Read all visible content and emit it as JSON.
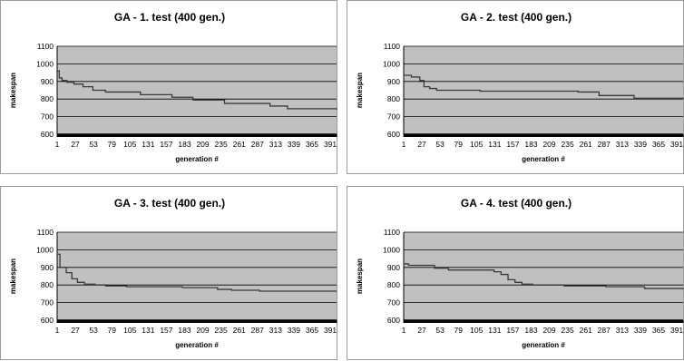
{
  "chart_data": [
    {
      "type": "line",
      "title": "GA - 1. test (400 gen.)",
      "xlabel": "generation #",
      "ylabel": "makespan",
      "ylim": [
        600,
        1100
      ],
      "yticks": [
        "600",
        "700",
        "800",
        "900",
        "1000",
        "1100"
      ],
      "xlim": [
        1,
        400
      ],
      "xticks": [
        "1",
        "27",
        "53",
        "79",
        "105",
        "131",
        "157",
        "183",
        "209",
        "235",
        "261",
        "287",
        "313",
        "339",
        "365",
        "391"
      ],
      "grid": true,
      "legend": "none",
      "series": [
        {
          "x": [
            1,
            4,
            8,
            15,
            25,
            38,
            52,
            70,
            120,
            165,
            195,
            240,
            305,
            330,
            400
          ],
          "y": [
            960,
            920,
            905,
            895,
            885,
            870,
            850,
            840,
            825,
            810,
            795,
            775,
            760,
            745,
            740
          ]
        }
      ]
    },
    {
      "type": "line",
      "title": "GA - 2. test (400 gen.)",
      "xlabel": "generation #",
      "ylabel": "makespan",
      "ylim": [
        600,
        1100
      ],
      "yticks": [
        "600",
        "700",
        "800",
        "900",
        "1000",
        "1100"
      ],
      "xlim": [
        1,
        400
      ],
      "xticks": [
        "1",
        "27",
        "53",
        "79",
        "105",
        "131",
        "157",
        "183",
        "209",
        "235",
        "261",
        "287",
        "313",
        "339",
        "365",
        "391"
      ],
      "grid": true,
      "legend": "none",
      "series": [
        {
          "x": [
            1,
            12,
            24,
            30,
            38,
            48,
            110,
            250,
            280,
            330,
            400
          ],
          "y": [
            935,
            925,
            905,
            870,
            860,
            850,
            845,
            840,
            820,
            805,
            800
          ]
        }
      ]
    },
    {
      "type": "line",
      "title": "GA - 3. test (400 gen.)",
      "xlabel": "generation #",
      "ylabel": "makespan",
      "ylim": [
        600,
        1100
      ],
      "yticks": [
        "600",
        "700",
        "800",
        "900",
        "1000",
        "1100"
      ],
      "xlim": [
        1,
        400
      ],
      "xticks": [
        "1",
        "27",
        "53",
        "79",
        "105",
        "131",
        "157",
        "183",
        "209",
        "235",
        "261",
        "287",
        "313",
        "339",
        "365",
        "391"
      ],
      "grid": true,
      "legend": "none",
      "series": [
        {
          "x": [
            1,
            5,
            14,
            22,
            30,
            40,
            55,
            70,
            100,
            180,
            230,
            250,
            290,
            400
          ],
          "y": [
            975,
            900,
            870,
            835,
            815,
            805,
            800,
            795,
            790,
            785,
            775,
            770,
            765,
            765
          ]
        }
      ]
    },
    {
      "type": "line",
      "title": "GA - 4. test (400 gen.)",
      "xlabel": "generation #",
      "ylabel": "makespan",
      "ylim": [
        600,
        1100
      ],
      "yticks": [
        "600",
        "700",
        "800",
        "900",
        "1000",
        "1100"
      ],
      "xlim": [
        1,
        400
      ],
      "xticks": [
        "1",
        "27",
        "53",
        "79",
        "105",
        "131",
        "157",
        "183",
        "209",
        "235",
        "261",
        "287",
        "313",
        "339",
        "365",
        "391"
      ],
      "grid": true,
      "legend": "none",
      "series": [
        {
          "x": [
            1,
            8,
            45,
            65,
            130,
            140,
            150,
            160,
            170,
            185,
            230,
            290,
            345,
            400
          ],
          "y": [
            920,
            912,
            895,
            885,
            875,
            860,
            830,
            815,
            805,
            800,
            795,
            790,
            780,
            775
          ]
        }
      ]
    }
  ]
}
